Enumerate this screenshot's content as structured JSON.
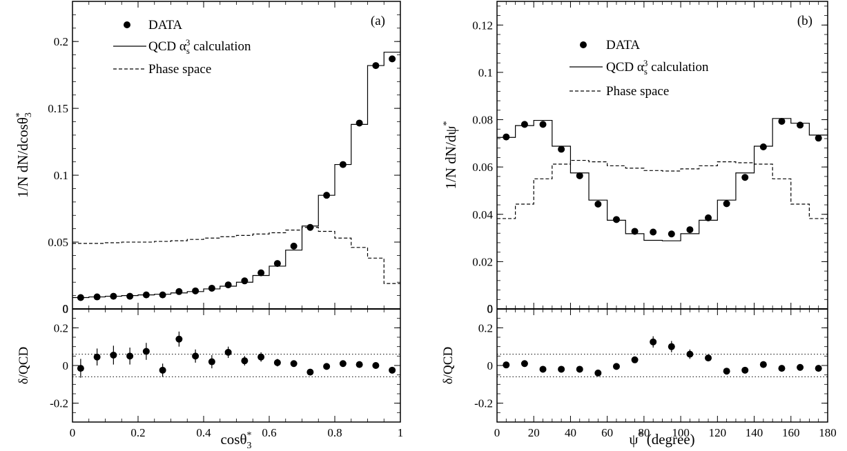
{
  "chart_data": [
    {
      "type": "histogram",
      "panel_label": "(a)",
      "xlabel": "cosθ3*",
      "ylabel": "1/N dN/dcosθ3*",
      "xlim": [
        0,
        1
      ],
      "ylim": [
        0,
        0.23
      ],
      "x_ticks": [
        0,
        0.2,
        0.4,
        0.6,
        0.8,
        1
      ],
      "x_tick_labels": [
        "0",
        "0.2",
        "0.4",
        "0.6",
        "0.8",
        "1"
      ],
      "y_ticks": [
        0,
        0.05,
        0.1,
        0.15,
        0.2
      ],
      "y_tick_labels": [
        "0",
        "0.05",
        "0.1",
        "0.15",
        "0.2"
      ],
      "legend": {
        "placement": "top-left",
        "entries": [
          {
            "label": "DATA",
            "style": "marker"
          },
          {
            "label": "QCD α_s^3 calculation",
            "style": "solid"
          },
          {
            "label": "Phase space",
            "style": "dashed"
          }
        ]
      },
      "bin_edges": [
        0,
        0.05,
        0.1,
        0.15,
        0.2,
        0.25,
        0.3,
        0.35,
        0.4,
        0.45,
        0.5,
        0.55,
        0.6,
        0.65,
        0.7,
        0.75,
        0.8,
        0.85,
        0.9,
        0.95,
        1.0
      ],
      "series": [
        {
          "name": "QCD α_s^3 calculation",
          "style": "solid",
          "values": [
            0.0085,
            0.009,
            0.0095,
            0.01,
            0.0105,
            0.011,
            0.012,
            0.013,
            0.015,
            0.017,
            0.02,
            0.025,
            0.032,
            0.044,
            0.062,
            0.085,
            0.108,
            0.138,
            0.182,
            0.192
          ]
        },
        {
          "name": "Phase space",
          "style": "dashed",
          "values": [
            0.049,
            0.049,
            0.0495,
            0.05,
            0.05,
            0.0505,
            0.051,
            0.052,
            0.053,
            0.054,
            0.055,
            0.056,
            0.057,
            0.059,
            0.061,
            0.058,
            0.053,
            0.046,
            0.038,
            0.019
          ]
        }
      ],
      "data_points": {
        "name": "DATA",
        "x": [
          0.025,
          0.075,
          0.125,
          0.175,
          0.225,
          0.275,
          0.325,
          0.375,
          0.425,
          0.475,
          0.525,
          0.575,
          0.625,
          0.675,
          0.725,
          0.775,
          0.825,
          0.875,
          0.925,
          0.975
        ],
        "y": [
          0.0085,
          0.009,
          0.0095,
          0.0095,
          0.0105,
          0.0105,
          0.013,
          0.0135,
          0.0155,
          0.018,
          0.021,
          0.027,
          0.034,
          0.047,
          0.061,
          0.085,
          0.108,
          0.139,
          0.182,
          0.187
        ]
      },
      "ratio": {
        "ylabel": "δ/QCD",
        "ylim": [
          -0.3,
          0.3
        ],
        "y_ticks": [
          -0.2,
          0,
          0.2
        ],
        "y_tick_labels": [
          "-0.2",
          "0",
          "0.2"
        ],
        "band": [
          -0.06,
          0.06
        ],
        "values": [
          -0.015,
          0.045,
          0.055,
          0.05,
          0.075,
          -0.025,
          0.14,
          0.05,
          0.02,
          0.07,
          0.025,
          0.045,
          0.015,
          0.01,
          -0.035,
          -0.005,
          0.01,
          0.005,
          0.0,
          -0.025
        ],
        "errors": [
          0.05,
          0.045,
          0.05,
          0.045,
          0.045,
          0.035,
          0.04,
          0.035,
          0.035,
          0.03,
          0.025,
          0.025,
          0.02,
          0.015,
          0.015,
          0.012,
          0.01,
          0.01,
          0.01,
          0.01
        ]
      }
    },
    {
      "type": "histogram",
      "panel_label": "(b)",
      "xlabel": "ψ* (degree)",
      "ylabel": "1/N dN/dψ*",
      "xlim": [
        0,
        180
      ],
      "ylim": [
        0,
        0.13
      ],
      "x_ticks": [
        0,
        20,
        40,
        60,
        80,
        100,
        120,
        140,
        160,
        180
      ],
      "x_tick_labels": [
        "0",
        "20",
        "40",
        "60",
        "80",
        "100",
        "120",
        "140",
        "160",
        "180"
      ],
      "y_ticks": [
        0,
        0.02,
        0.04,
        0.06,
        0.08,
        0.1,
        0.12
      ],
      "y_tick_labels": [
        "0",
        "0.02",
        "0.04",
        "0.06",
        "0.08",
        "0.1",
        "0.12"
      ],
      "legend": {
        "placement": "top-center",
        "entries": [
          {
            "label": "DATA",
            "style": "marker"
          },
          {
            "label": "QCD α_s^3 calculation",
            "style": "solid"
          },
          {
            "label": "Phase space",
            "style": "dashed"
          }
        ]
      },
      "bin_edges": [
        0,
        10,
        20,
        30,
        40,
        50,
        60,
        70,
        80,
        90,
        100,
        110,
        120,
        130,
        140,
        150,
        160,
        170,
        180
      ],
      "series": [
        {
          "name": "QCD α_s^3 calculation",
          "style": "solid",
          "values": [
            0.0725,
            0.0775,
            0.0797,
            0.0688,
            0.0575,
            0.046,
            0.0375,
            0.0318,
            0.029,
            0.0288,
            0.0318,
            0.0375,
            0.046,
            0.0575,
            0.0688,
            0.0805,
            0.0785,
            0.0735
          ]
        },
        {
          "name": "Phase space",
          "style": "dashed",
          "values": [
            0.0382,
            0.0443,
            0.055,
            0.0612,
            0.0628,
            0.0622,
            0.0605,
            0.0595,
            0.0585,
            0.0583,
            0.0592,
            0.0605,
            0.0622,
            0.0618,
            0.0612,
            0.055,
            0.0443,
            0.0382
          ]
        }
      ],
      "data_points": {
        "name": "DATA",
        "x": [
          5,
          15,
          25,
          35,
          45,
          55,
          65,
          75,
          85,
          95,
          105,
          115,
          125,
          135,
          145,
          155,
          165,
          175
        ],
        "y": [
          0.0727,
          0.078,
          0.078,
          0.0675,
          0.0563,
          0.0443,
          0.0378,
          0.0328,
          0.0325,
          0.0317,
          0.0335,
          0.0385,
          0.0445,
          0.0556,
          0.0685,
          0.0793,
          0.0777,
          0.0722
        ]
      },
      "ratio": {
        "ylabel": "δ/QCD",
        "ylim": [
          -0.3,
          0.3
        ],
        "y_ticks": [
          -0.2,
          0,
          0.2
        ],
        "y_tick_labels": [
          "-0.2",
          "0",
          "0.2"
        ],
        "band": [
          -0.06,
          0.06
        ],
        "values": [
          0.003,
          0.01,
          -0.02,
          -0.02,
          -0.02,
          -0.04,
          -0.005,
          0.03,
          0.125,
          0.1,
          0.06,
          0.04,
          -0.03,
          -0.025,
          0.005,
          -0.015,
          -0.01,
          -0.015
        ],
        "errors": [
          0.01,
          0.01,
          0.01,
          0.01,
          0.01,
          0.012,
          0.012,
          0.015,
          0.03,
          0.03,
          0.025,
          0.015,
          0.01,
          0.01,
          0.01,
          0.01,
          0.01,
          0.01
        ]
      }
    }
  ]
}
